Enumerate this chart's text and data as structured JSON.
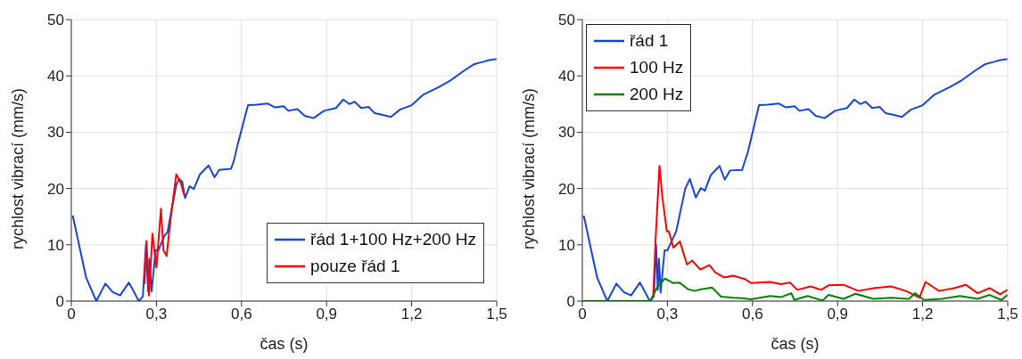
{
  "chart_data": [
    {
      "type": "line",
      "xlabel": "čas (s)",
      "ylabel": "rychlost vibrací (mm/s)",
      "xlim": [
        0,
        1.5
      ],
      "ylim": [
        0,
        50
      ],
      "xticks": [
        0,
        {
          "value": 0.3,
          "label": "0,3"
        },
        {
          "value": 0.6,
          "label": "0,6"
        },
        {
          "value": 0.9,
          "label": "0,9"
        },
        {
          "value": 1.2,
          "label": "1,2"
        },
        {
          "value": 1.5,
          "label": "1,5"
        }
      ],
      "yticks": [
        0,
        10,
        20,
        30,
        40,
        50
      ],
      "grid": true,
      "legend": "bottom right",
      "marker": "none",
      "line_style": "solid",
      "series": [
        {
          "name": "řád 1+100 Hz+200 Hz",
          "color": "#1845d8",
          "x": [
            0.005,
            0.052,
            0.088,
            0.12,
            0.146,
            0.172,
            0.203,
            0.238,
            0.252,
            0.263,
            0.271,
            0.275,
            0.283,
            0.297,
            0.307,
            0.328,
            0.339,
            0.354,
            0.37,
            0.38,
            0.391,
            0.401,
            0.417,
            0.432,
            0.453,
            0.484,
            0.505,
            0.521,
            0.563,
            0.573,
            0.589,
            0.623,
            0.655,
            0.692,
            0.718,
            0.749,
            0.765,
            0.797,
            0.823,
            0.854,
            0.891,
            0.933,
            0.959,
            0.98,
            0.999,
            1.022,
            1.048,
            1.069,
            1.095,
            1.127,
            1.158,
            1.2,
            1.242,
            1.295,
            1.337,
            1.384,
            1.421,
            1.452,
            1.473,
            1.499
          ],
          "values": [
            15.2,
            4.2,
            0,
            3.1,
            1.6,
            1,
            3.3,
            0,
            0.8,
            10,
            1.7,
            7.5,
            1.7,
            9,
            9,
            11.6,
            12.2,
            16.4,
            20.6,
            21.7,
            21.2,
            18.3,
            20.4,
            19.9,
            22.5,
            24.1,
            22,
            23.3,
            23.5,
            24.9,
            28.3,
            34.8,
            34.9,
            35.1,
            34.4,
            34.6,
            33.8,
            34.1,
            32.9,
            32.5,
            33.8,
            34.3,
            35.8,
            35,
            35.4,
            34.3,
            34.5,
            33.4,
            33.1,
            32.7,
            34,
            34.8,
            36.7,
            38,
            39.2,
            40.9,
            42.1,
            42.5,
            42.8,
            43
          ]
        },
        {
          "name": "pouze řád 1",
          "color": "#ff0000",
          "x": [
            0.258,
            0.265,
            0.274,
            0.286,
            0.3,
            0.316,
            0.325,
            0.336,
            0.349,
            0.37,
            0.386,
            0.398
          ],
          "values": [
            3,
            10.7,
            1,
            12,
            6,
            16.4,
            9,
            8,
            14.2,
            22.5,
            21,
            18.8
          ]
        }
      ]
    },
    {
      "type": "line",
      "xlabel": "čas (s)",
      "ylabel": "rychlost vibrací (mm/s)",
      "xlim": [
        0,
        1.5
      ],
      "ylim": [
        0,
        50
      ],
      "xticks": [
        0,
        {
          "value": 0.3,
          "label": "0,3"
        },
        {
          "value": 0.6,
          "label": "0,6"
        },
        {
          "value": 0.9,
          "label": "0,9"
        },
        {
          "value": 1.2,
          "label": "1,2"
        },
        {
          "value": 1.5,
          "label": "1,5"
        }
      ],
      "yticks": [
        0,
        10,
        20,
        30,
        40,
        50
      ],
      "grid": true,
      "legend": "top left",
      "marker": "none",
      "line_style": "solid",
      "series": [
        {
          "name": "řád 1",
          "color": "#1845d8",
          "x": [
            0.005,
            0.052,
            0.088,
            0.12,
            0.146,
            0.172,
            0.203,
            0.238,
            0.252,
            0.26,
            0.266,
            0.27,
            0.276,
            0.29,
            0.3,
            0.331,
            0.363,
            0.379,
            0.4,
            0.418,
            0.432,
            0.453,
            0.484,
            0.502,
            0.521,
            0.563,
            0.584,
            0.623,
            0.655,
            0.692,
            0.718,
            0.749,
            0.765,
            0.797,
            0.823,
            0.854,
            0.891,
            0.933,
            0.959,
            0.98,
            0.999,
            1.022,
            1.048,
            1.069,
            1.095,
            1.127,
            1.158,
            1.2,
            1.242,
            1.295,
            1.337,
            1.384,
            1.421,
            1.452,
            1.473,
            1.499
          ],
          "values": [
            15.2,
            4.2,
            0,
            3.1,
            1.6,
            1,
            3.3,
            0,
            0.8,
            10,
            2,
            7.5,
            1.5,
            9,
            9,
            12.4,
            20,
            21.7,
            18.4,
            20.1,
            19.6,
            22.4,
            24,
            21.6,
            23.2,
            23.3,
            26.5,
            34.8,
            34.9,
            35.1,
            34.4,
            34.6,
            33.8,
            34.1,
            32.9,
            32.5,
            33.8,
            34.3,
            35.8,
            35,
            35.4,
            34.3,
            34.5,
            33.4,
            33.1,
            32.7,
            34,
            34.8,
            36.7,
            38,
            39.2,
            40.9,
            42.1,
            42.5,
            42.8,
            43
          ]
        },
        {
          "name": "100 Hz",
          "color": "#ff0000",
          "x": [
            0,
            0.24,
            0.25,
            0.258,
            0.272,
            0.282,
            0.298,
            0.305,
            0.321,
            0.344,
            0.369,
            0.387,
            0.416,
            0.448,
            0.469,
            0.5,
            0.532,
            0.574,
            0.595,
            0.662,
            0.7,
            0.732,
            0.758,
            0.805,
            0.842,
            0.868,
            0.921,
            0.974,
            1.026,
            1.089,
            1.141,
            1.189,
            1.21,
            1.258,
            1.31,
            1.352,
            1.394,
            1.436,
            1.473,
            1.499
          ],
          "values": [
            0,
            0,
            1,
            10.6,
            24,
            18.5,
            12.4,
            12.4,
            9.5,
            10.6,
            6.5,
            7.2,
            5.6,
            6.4,
            5.1,
            4.2,
            4.5,
            3.9,
            3.2,
            3.4,
            3,
            3.3,
            2,
            2.6,
            2,
            2.8,
            2.9,
            1.8,
            2.3,
            2.6,
            1.8,
            0.6,
            3.4,
            1.8,
            2.3,
            2.9,
            1.4,
            2.3,
            1.2,
            2
          ]
        },
        {
          "name": "200 Hz",
          "color": "#008000",
          "x": [
            0,
            0.24,
            0.263,
            0.291,
            0.321,
            0.342,
            0.373,
            0.396,
            0.418,
            0.458,
            0.489,
            0.532,
            0.563,
            0.595,
            0.662,
            0.7,
            0.737,
            0.747,
            0.794,
            0.847,
            0.868,
            0.921,
            0.963,
            1.026,
            1.089,
            1.152,
            1.173,
            1.205,
            1.268,
            1.331,
            1.394,
            1.436,
            1.478,
            1.499
          ],
          "values": [
            0,
            0,
            2.4,
            4,
            3.2,
            3.3,
            2.1,
            1.8,
            2.1,
            2.4,
            0.8,
            0.6,
            0.5,
            0.3,
            0.9,
            0.7,
            1.4,
            0.2,
            0.9,
            0.1,
            1.1,
            0.4,
            1.3,
            0.4,
            0.6,
            0.4,
            1.4,
            0.2,
            0.4,
            0.9,
            0.4,
            1.1,
            0.2,
            1.1
          ]
        }
      ]
    }
  ]
}
